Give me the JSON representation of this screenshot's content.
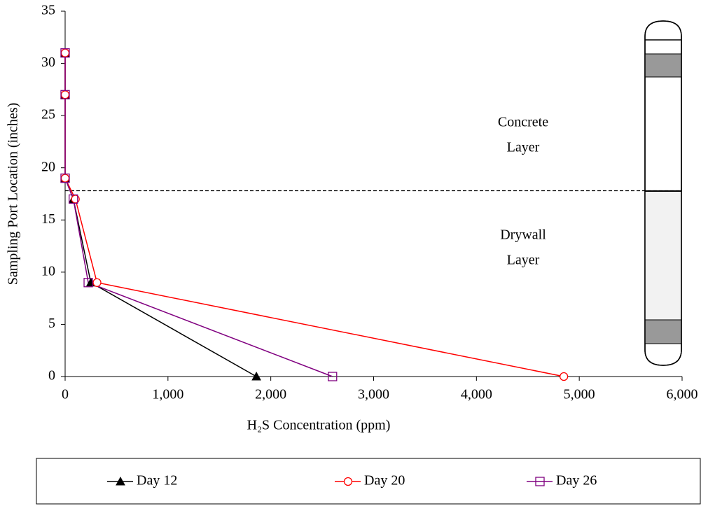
{
  "chart_data": {
    "type": "line",
    "xlabel": "H₂S Concentration (ppm)",
    "ylabel": "Sampling Port Location (inches)",
    "xlim": [
      0,
      6000
    ],
    "xticks": [
      0,
      {
        "value": 1000,
        "label": "1,000"
      },
      {
        "value": 2000,
        "label": "2,000"
      },
      {
        "value": 3000,
        "label": "3,000"
      },
      {
        "value": 4000,
        "label": "4,000"
      },
      {
        "value": 5000,
        "label": "5,000"
      },
      {
        "value": 6000,
        "label": "6,000"
      }
    ],
    "ylim": [
      0,
      35
    ],
    "yticks": [
      0,
      5,
      10,
      15,
      20,
      25,
      30,
      35
    ],
    "hline": 17.8,
    "annotations": [
      [
        "Concrete",
        "Layer"
      ],
      [
        "Drywall",
        "Layer"
      ]
    ],
    "legend": "bottom",
    "series": [
      {
        "name": "Day 12",
        "color": "#000000",
        "marker": "triangle",
        "x": [
          0,
          0,
          0,
          80,
          250,
          1860
        ],
        "values": [
          31,
          27,
          19,
          17,
          9,
          0
        ]
      },
      {
        "name": "Day 20",
        "color": "#ff0000",
        "marker": "circle",
        "x": [
          0,
          0,
          0,
          100,
          310,
          4850
        ],
        "values": [
          31,
          27,
          19,
          17,
          9,
          0
        ]
      },
      {
        "name": "Day 26",
        "color": "#800080",
        "marker": "square",
        "x": [
          0,
          0,
          0,
          80,
          225,
          2600
        ],
        "values": [
          31,
          27,
          19,
          17,
          9,
          0
        ]
      }
    ]
  }
}
